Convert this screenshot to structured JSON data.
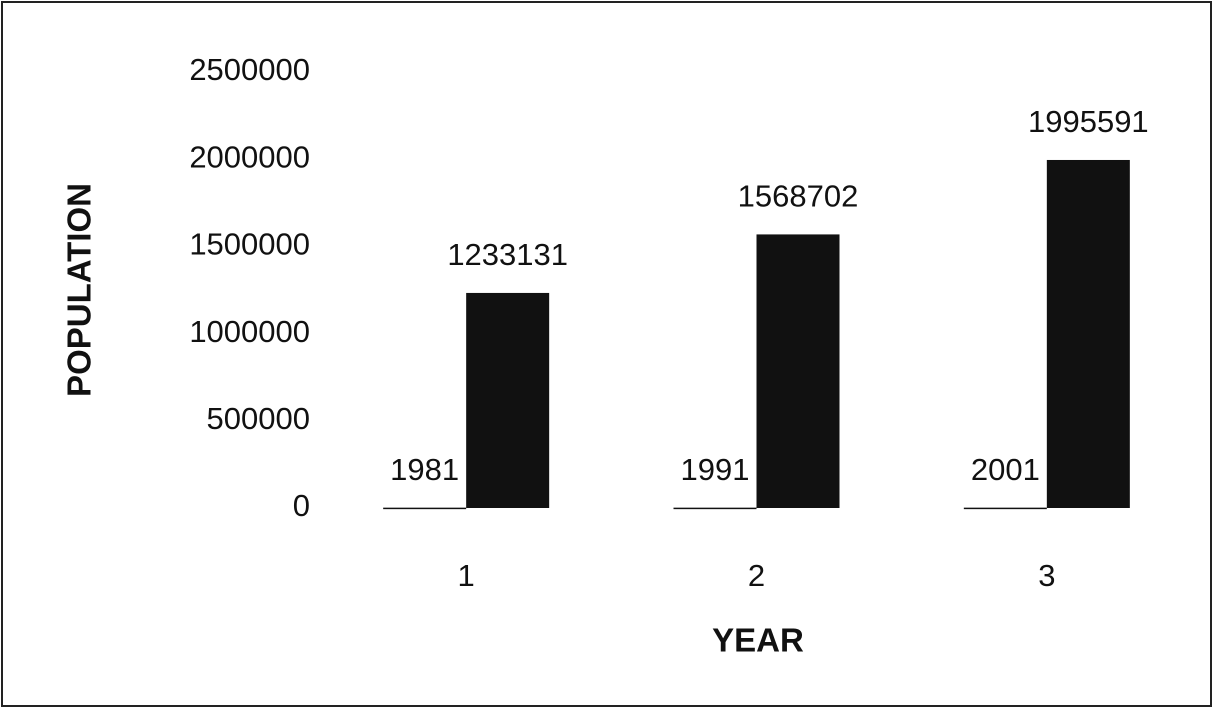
{
  "chart_data": {
    "type": "bar",
    "xlabel": "YEAR",
    "ylabel": "POPULATION",
    "categories": [
      "1",
      "2",
      "3"
    ],
    "series": [
      {
        "color": "#111111",
        "values": [
          1981,
          1991,
          2001
        ]
      },
      {
        "color": "#111111",
        "values": [
          1233131,
          1568702,
          1995591
        ]
      }
    ],
    "ylim": [
      0,
      2500000
    ],
    "yticks": [
      0,
      500000,
      1000000,
      1500000,
      2000000,
      2500000
    ],
    "grid": false
  }
}
